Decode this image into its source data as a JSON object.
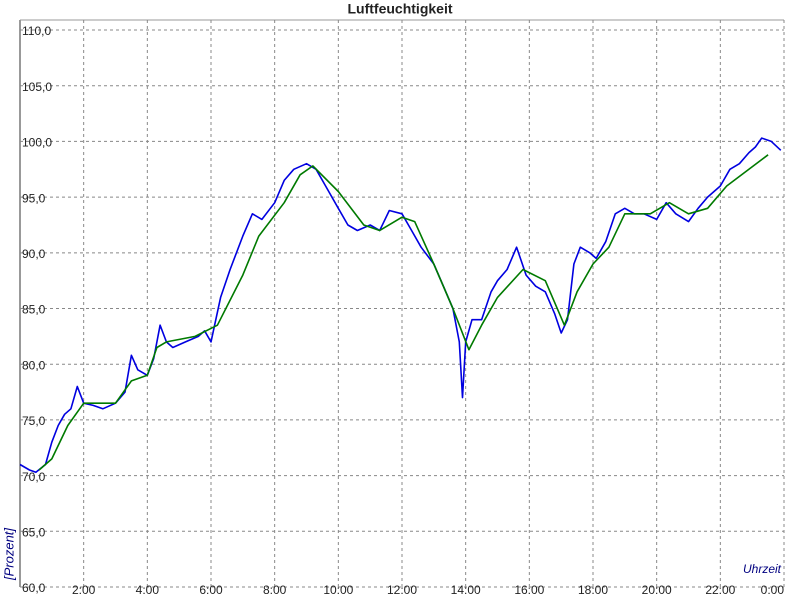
{
  "chart_data": {
    "type": "line",
    "title": "Luftfeuchtigkeit",
    "y_label": "[Prozent]",
    "x_label": "Uhrzeit",
    "xlim": [
      0,
      24
    ],
    "ylim": [
      60,
      110.9
    ],
    "grid": true,
    "xticks": [
      {
        "value": 2,
        "label": "2:00"
      },
      {
        "value": 4,
        "label": "4:00"
      },
      {
        "value": 6,
        "label": "6:00"
      },
      {
        "value": 8,
        "label": "8:00"
      },
      {
        "value": 10,
        "label": "10:00"
      },
      {
        "value": 12,
        "label": "12:00"
      },
      {
        "value": 14,
        "label": "14:00"
      },
      {
        "value": 16,
        "label": "16:00"
      },
      {
        "value": 18,
        "label": "18:00"
      },
      {
        "value": 20,
        "label": "20:00"
      },
      {
        "value": 22,
        "label": "22:00"
      },
      {
        "value": 24,
        "label": "0:00"
      }
    ],
    "yticks": [
      {
        "value": 60,
        "label": "60,0"
      },
      {
        "value": 65,
        "label": "65,0"
      },
      {
        "value": 70,
        "label": "70,0"
      },
      {
        "value": 75,
        "label": "75,0"
      },
      {
        "value": 80,
        "label": "80,0"
      },
      {
        "value": 85,
        "label": "85,0"
      },
      {
        "value": 90,
        "label": "90,0"
      },
      {
        "value": 95,
        "label": "95,0"
      },
      {
        "value": 100,
        "label": "100,0"
      },
      {
        "value": 105,
        "label": "105,0"
      },
      {
        "value": 110,
        "label": "110,0"
      }
    ],
    "series": [
      {
        "color": "#0000e0",
        "x": [
          0,
          0.3,
          0.5,
          0.8,
          1.0,
          1.2,
          1.4,
          1.6,
          1.8,
          2.0,
          2.3,
          2.6,
          3.0,
          3.3,
          3.5,
          3.7,
          4.0,
          4.2,
          4.4,
          4.6,
          4.8,
          5.2,
          5.6,
          5.8,
          6.0,
          6.3,
          6.6,
          7.0,
          7.3,
          7.6,
          8.0,
          8.3,
          8.6,
          9.0,
          9.3,
          9.6,
          10.0,
          10.3,
          10.6,
          11.0,
          11.3,
          11.6,
          12.0,
          12.3,
          12.6,
          13.0,
          13.3,
          13.6,
          13.8,
          13.9,
          14.0,
          14.2,
          14.5,
          14.8,
          15.0,
          15.3,
          15.6,
          15.9,
          16.2,
          16.5,
          16.8,
          17.0,
          17.2,
          17.4,
          17.6,
          17.9,
          18.1,
          18.4,
          18.7,
          19.0,
          19.3,
          19.6,
          20.0,
          20.3,
          20.6,
          21.0,
          21.3,
          21.6,
          22.0,
          22.3,
          22.6,
          22.9,
          23.1,
          23.3,
          23.6,
          23.9
        ],
        "values": [
          71,
          70.5,
          70.3,
          71,
          73,
          74.5,
          75.5,
          76,
          78,
          76.5,
          76.3,
          76,
          76.5,
          77.5,
          80.8,
          79.5,
          79,
          80.5,
          83.5,
          82,
          81.5,
          82,
          82.5,
          83,
          82,
          86,
          88.5,
          91.5,
          93.5,
          93,
          94.5,
          96.5,
          97.5,
          98,
          97.5,
          96,
          94,
          92.5,
          92,
          92.5,
          92,
          93.8,
          93.5,
          92,
          90.5,
          89,
          87,
          85,
          82,
          77,
          82,
          84,
          84,
          86.5,
          87.5,
          88.5,
          90.5,
          88,
          87,
          86.5,
          84.5,
          82.8,
          84,
          89,
          90.5,
          90,
          89.5,
          91,
          93.5,
          94,
          93.5,
          93.5,
          93,
          94.5,
          93.5,
          92.8,
          94,
          95,
          96,
          97.5,
          98,
          99,
          99.5,
          100.3,
          100,
          99.2
        ]
      },
      {
        "color": "#007a00",
        "x": [
          0.6,
          1.0,
          1.5,
          2.0,
          3.0,
          3.5,
          4.0,
          4.3,
          4.6,
          5.5,
          6.2,
          7.0,
          7.5,
          8.3,
          8.8,
          9.2,
          10.0,
          10.8,
          11.3,
          12.0,
          12.4,
          13.0,
          13.6,
          14.1,
          14.5,
          15.0,
          15.8,
          16.5,
          17.1,
          17.5,
          18.0,
          18.5,
          19.0,
          19.8,
          20.4,
          21.0,
          21.6,
          22.2,
          23.5
        ],
        "values": [
          70.5,
          71.5,
          74.5,
          76.5,
          76.5,
          78.5,
          79,
          81.5,
          82,
          82.5,
          83.5,
          88,
          91.5,
          94.5,
          97,
          97.8,
          95.5,
          92.5,
          92,
          93.2,
          92.8,
          89,
          85,
          81.3,
          83.5,
          86,
          88.5,
          87.5,
          83.5,
          86.5,
          89,
          90.5,
          93.5,
          93.5,
          94.5,
          93.5,
          94,
          96,
          98.8
        ]
      }
    ]
  }
}
